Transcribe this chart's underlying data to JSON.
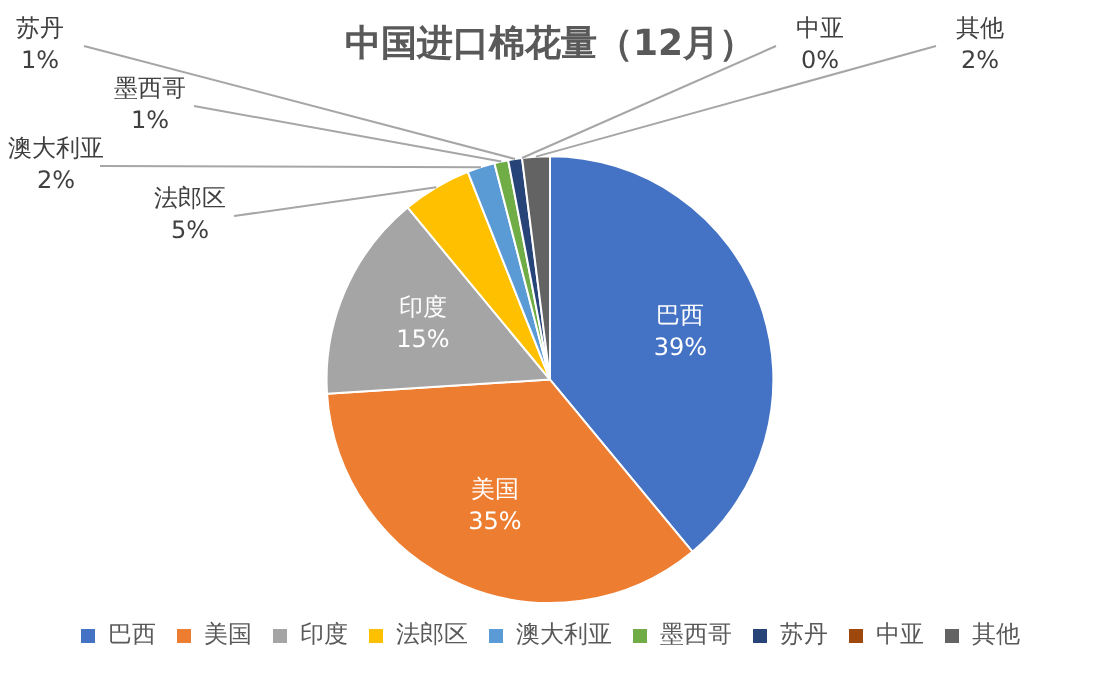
{
  "chart_data": {
    "type": "pie",
    "title": "中国进口棉花量（12月）",
    "categories": [
      "巴西",
      "美国",
      "印度",
      "法郎区",
      "澳大利亚",
      "墨西哥",
      "苏丹",
      "中亚",
      "其他"
    ],
    "values": [
      39,
      35,
      15,
      5,
      2,
      1,
      1,
      0,
      2
    ],
    "value_labels": [
      "39%",
      "35%",
      "15%",
      "5%",
      "2%",
      "1%",
      "1%",
      "0%",
      "2%"
    ],
    "colors": [
      "#4472c4",
      "#ed7d31",
      "#a5a5a5",
      "#ffc000",
      "#5b9bd5",
      "#70ad47",
      "#264478",
      "#9e480e",
      "#636363"
    ],
    "legend": "bottom"
  }
}
